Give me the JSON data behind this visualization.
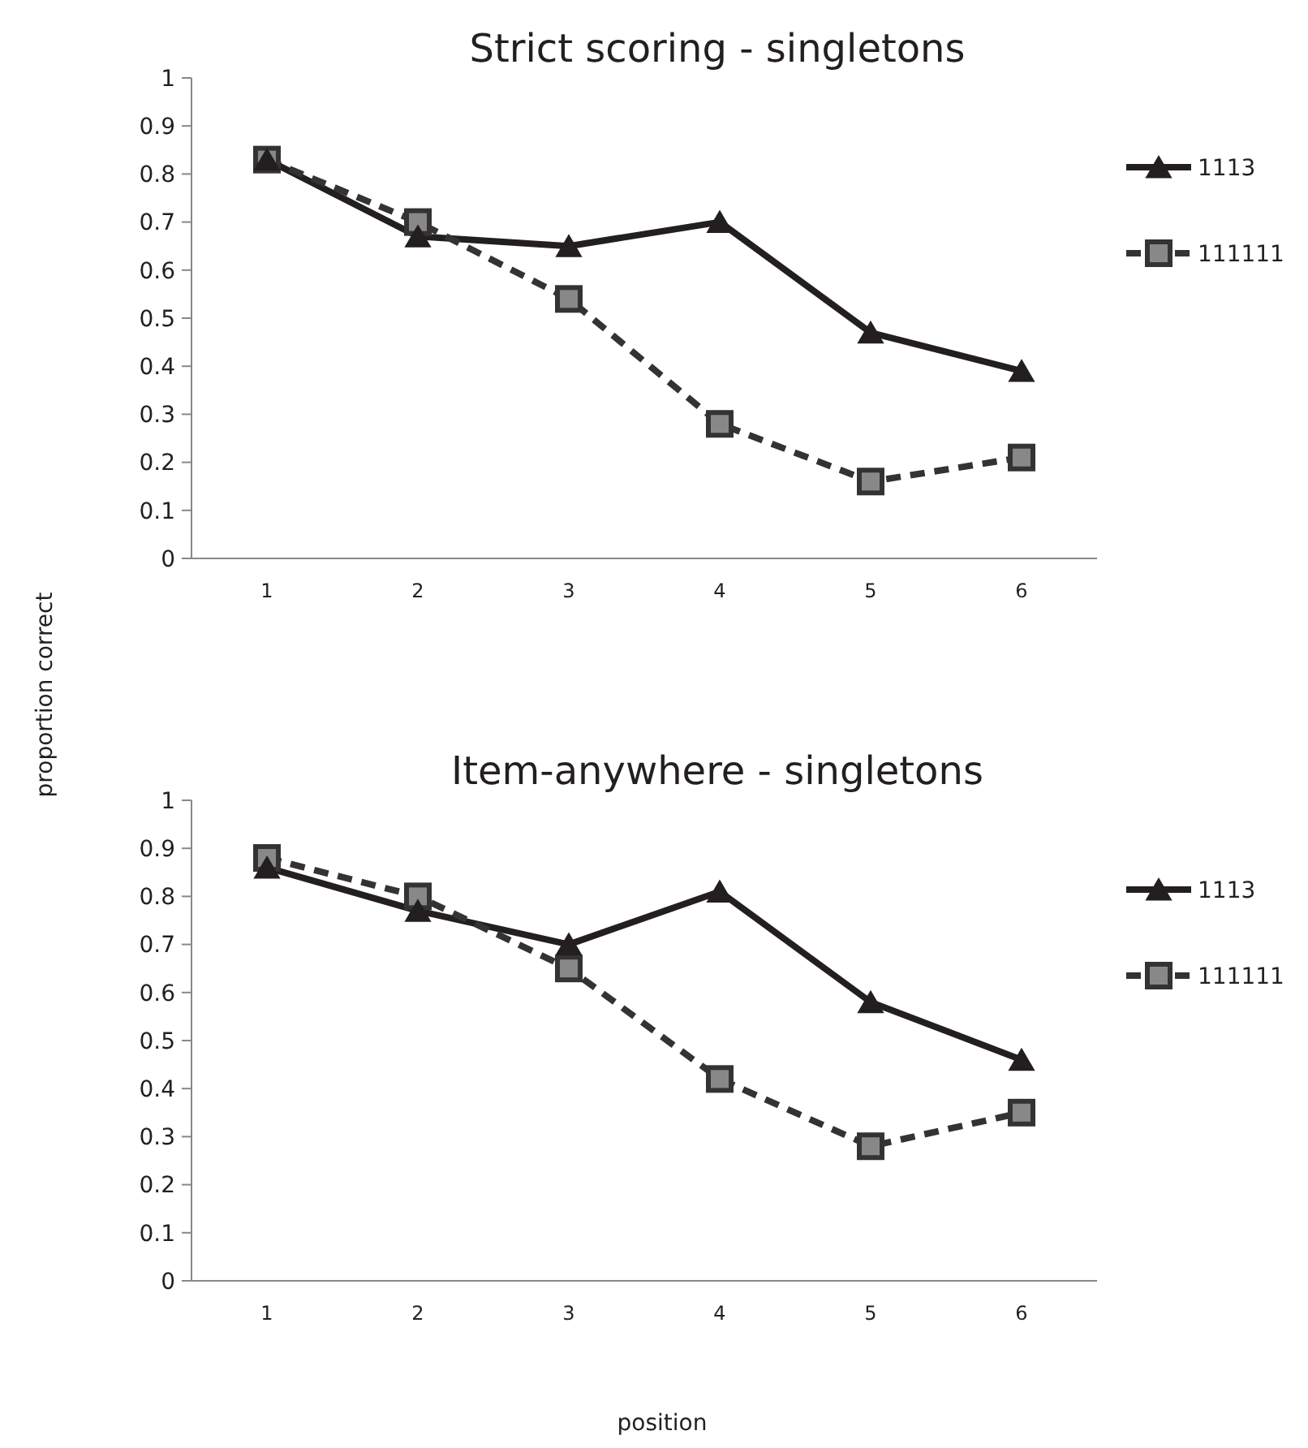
{
  "chart_data": [
    {
      "type": "line",
      "title": "Strict  scoring - singletons",
      "ylabel": "proportion correct",
      "categories": [
        "1",
        "2",
        "3",
        "4",
        "5",
        "6"
      ],
      "ylim": [
        0,
        1
      ],
      "yticks": [
        0,
        0.1,
        0.2,
        0.3,
        0.4,
        0.5,
        0.6,
        0.7,
        0.8,
        0.9,
        1
      ],
      "legend": "right",
      "grid": false,
      "series": [
        {
          "name": "1113",
          "color": "#231f20",
          "marker": "triangle",
          "line_style": "solid",
          "values": [
            0.83,
            0.67,
            0.65,
            0.7,
            0.47,
            0.39
          ]
        },
        {
          "name": "111111",
          "color": "#333333",
          "marker": "square",
          "line_style": "dashed",
          "values": [
            0.83,
            0.7,
            0.54,
            0.28,
            0.16,
            0.21
          ]
        }
      ]
    },
    {
      "type": "line",
      "title": "Item-anywhere - singletons",
      "xlabel": "position",
      "categories": [
        "1",
        "2",
        "3",
        "4",
        "5",
        "6"
      ],
      "ylim": [
        0,
        1
      ],
      "yticks": [
        0,
        0.1,
        0.2,
        0.3,
        0.4,
        0.5,
        0.6,
        0.7,
        0.8,
        0.9,
        1
      ],
      "legend": "right",
      "grid": false,
      "series": [
        {
          "name": "1113",
          "color": "#231f20",
          "marker": "triangle",
          "line_style": "solid",
          "values": [
            0.86,
            0.77,
            0.7,
            0.81,
            0.58,
            0.46
          ]
        },
        {
          "name": "111111",
          "color": "#333333",
          "marker": "square",
          "line_style": "dashed",
          "values": [
            0.88,
            0.8,
            0.65,
            0.42,
            0.28,
            0.35
          ]
        }
      ]
    }
  ]
}
